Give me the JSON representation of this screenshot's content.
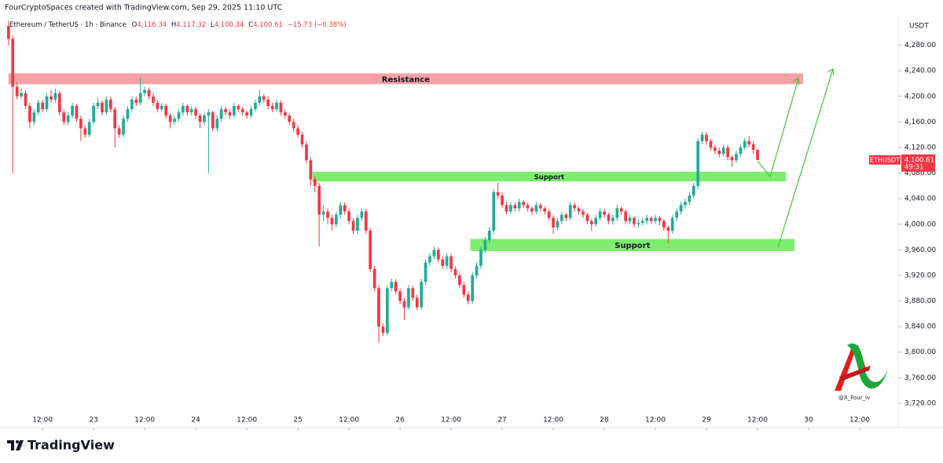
{
  "header": {
    "attribution": "FourCryptoSpaces created with TradingView.com, Sep 29, 2025 11:10 UTC",
    "watermark": "@X_Four_iv",
    "brand": "TradingView"
  },
  "chart_data": {
    "type": "candlestick",
    "currency": "USDT",
    "legend": {
      "symbol": "Ethereum / TetherUS · 1h · Binance",
      "open_label": "O",
      "open": "4,116.34",
      "high_label": "H",
      "high": "4,117.32",
      "low_label": "L",
      "low": "4,100.34",
      "close_label": "C",
      "close": "4,100.61",
      "change": "−15.73 (−0.38%)"
    },
    "colors": {
      "up": "#22ab94",
      "down": "#f23645"
    },
    "xlim": [
      -2,
      208.5
    ],
    "xticks": [
      {
        "value": 8,
        "label": "12:00"
      },
      {
        "value": 20,
        "label": "23"
      },
      {
        "value": 32,
        "label": "12:00"
      },
      {
        "value": 44,
        "label": "24"
      },
      {
        "value": 56,
        "label": "12:00"
      },
      {
        "value": 68,
        "label": "25"
      },
      {
        "value": 80,
        "label": "12:00"
      },
      {
        "value": 92,
        "label": "26"
      },
      {
        "value": 104,
        "label": "12:00"
      },
      {
        "value": 116,
        "label": "27"
      },
      {
        "value": 128,
        "label": "12:00"
      },
      {
        "value": 140,
        "label": "28"
      },
      {
        "value": 152,
        "label": "12:00"
      },
      {
        "value": 164,
        "label": "29"
      },
      {
        "value": 176,
        "label": "12:00"
      },
      {
        "value": 188,
        "label": "30"
      },
      {
        "value": 200,
        "label": "12:00"
      }
    ],
    "ylim": [
      3688,
      4320
    ],
    "yticks": [
      {
        "value": 3720,
        "label": "3,720.00"
      },
      {
        "value": 3760,
        "label": "3,760.00"
      },
      {
        "value": 3800,
        "label": "3,800.00"
      },
      {
        "value": 3840,
        "label": "3,840.00"
      },
      {
        "value": 3880,
        "label": "3,880.00"
      },
      {
        "value": 3920,
        "label": "3,920.00"
      },
      {
        "value": 3960,
        "label": "3,960.00"
      },
      {
        "value": 4000,
        "label": "4,000.00"
      },
      {
        "value": 4040,
        "label": "4,040.00"
      },
      {
        "value": 4080,
        "label": "4,080.00"
      },
      {
        "value": 4120,
        "label": "4,120.00"
      },
      {
        "value": 4160,
        "label": "4,160.00"
      },
      {
        "value": 4200,
        "label": "4,200.00"
      },
      {
        "value": 4240,
        "label": "4,240.00"
      },
      {
        "value": 4280,
        "label": "4,280.00"
      }
    ],
    "zones": [
      {
        "label": "Resistance",
        "range": [
          4219,
          4236
        ],
        "x": [
          0,
          186.7
        ],
        "color": "#f7a1a6"
      },
      {
        "label": "Support",
        "range": [
          4067,
          4082
        ],
        "x": [
          71.4,
          182.7
        ],
        "color": "#7ded6f"
      },
      {
        "label": "Support",
        "range": [
          3958,
          3977
        ],
        "x": [
          108.5,
          184.7
        ],
        "color": "#7ded6f"
      }
    ],
    "last_price": {
      "symbol": "ETHUSDT",
      "value": 4100.61,
      "label": "4,100.61",
      "countdown": "49:31",
      "color": "#f23645"
    },
    "ohlc": [
      [
        4310,
        4318,
        4280,
        4290
      ],
      [
        4290,
        4295,
        4080,
        4215
      ],
      [
        4215,
        4222,
        4195,
        4200
      ],
      [
        4200,
        4212,
        4196,
        4205
      ],
      [
        4205,
        4210,
        4180,
        4185
      ],
      [
        4185,
        4190,
        4150,
        4160
      ],
      [
        4160,
        4180,
        4155,
        4175
      ],
      [
        4175,
        4195,
        4170,
        4190
      ],
      [
        4190,
        4194,
        4175,
        4180
      ],
      [
        4180,
        4205,
        4176,
        4200
      ],
      [
        4200,
        4210,
        4190,
        4195
      ],
      [
        4195,
        4212,
        4190,
        4205
      ],
      [
        4205,
        4208,
        4170,
        4175
      ],
      [
        4175,
        4180,
        4155,
        4160
      ],
      [
        4160,
        4175,
        4155,
        4170
      ],
      [
        4170,
        4190,
        4166,
        4185
      ],
      [
        4185,
        4188,
        4160,
        4165
      ],
      [
        4165,
        4170,
        4130,
        4150
      ],
      [
        4150,
        4155,
        4135,
        4140
      ],
      [
        4140,
        4165,
        4136,
        4160
      ],
      [
        4160,
        4190,
        4156,
        4185
      ],
      [
        4185,
        4198,
        4180,
        4190
      ],
      [
        4190,
        4194,
        4170,
        4175
      ],
      [
        4175,
        4200,
        4172,
        4195
      ],
      [
        4195,
        4200,
        4175,
        4180
      ],
      [
        4180,
        4184,
        4120,
        4150
      ],
      [
        4150,
        4155,
        4135,
        4140
      ],
      [
        4140,
        4170,
        4136,
        4165
      ],
      [
        4165,
        4185,
        4160,
        4180
      ],
      [
        4180,
        4200,
        4176,
        4195
      ],
      [
        4195,
        4200,
        4185,
        4190
      ],
      [
        4190,
        4230,
        4186,
        4205
      ],
      [
        4205,
        4215,
        4200,
        4210
      ],
      [
        4210,
        4214,
        4195,
        4200
      ],
      [
        4200,
        4205,
        4185,
        4190
      ],
      [
        4190,
        4194,
        4175,
        4180
      ],
      [
        4180,
        4190,
        4176,
        4185
      ],
      [
        4185,
        4188,
        4165,
        4170
      ],
      [
        4170,
        4174,
        4150,
        4160
      ],
      [
        4160,
        4170,
        4155,
        4165
      ],
      [
        4165,
        4180,
        4160,
        4175
      ],
      [
        4175,
        4190,
        4170,
        4185
      ],
      [
        4185,
        4188,
        4170,
        4175
      ],
      [
        4175,
        4185,
        4170,
        4180
      ],
      [
        4180,
        4184,
        4165,
        4170
      ],
      [
        4170,
        4174,
        4150,
        4160
      ],
      [
        4160,
        4175,
        4155,
        4170
      ],
      [
        4170,
        4180,
        4080,
        4175
      ],
      [
        4175,
        4178,
        4145,
        4150
      ],
      [
        4150,
        4170,
        4145,
        4165
      ],
      [
        4165,
        4185,
        4160,
        4180
      ],
      [
        4180,
        4184,
        4170,
        4175
      ],
      [
        4175,
        4180,
        4165,
        4170
      ],
      [
        4170,
        4190,
        4166,
        4185
      ],
      [
        4185,
        4188,
        4175,
        4180
      ],
      [
        4180,
        4184,
        4170,
        4175
      ],
      [
        4175,
        4178,
        4165,
        4170
      ],
      [
        4170,
        4185,
        4166,
        4180
      ],
      [
        4180,
        4195,
        4176,
        4190
      ],
      [
        4190,
        4210,
        4186,
        4200
      ],
      [
        4200,
        4204,
        4190,
        4195
      ],
      [
        4195,
        4200,
        4180,
        4185
      ],
      [
        4185,
        4190,
        4175,
        4180
      ],
      [
        4180,
        4195,
        4176,
        4190
      ],
      [
        4190,
        4194,
        4170,
        4175
      ],
      [
        4175,
        4180,
        4165,
        4170
      ],
      [
        4170,
        4174,
        4155,
        4160
      ],
      [
        4160,
        4165,
        4145,
        4150
      ],
      [
        4150,
        4155,
        4135,
        4140
      ],
      [
        4140,
        4145,
        4120,
        4125
      ],
      [
        4125,
        4130,
        4095,
        4100
      ],
      [
        4100,
        4105,
        4060,
        4070
      ],
      [
        4070,
        4075,
        4050,
        4060
      ],
      [
        4060,
        4065,
        3965,
        4015
      ],
      [
        4015,
        4030,
        4005,
        4020
      ],
      [
        4020,
        4025,
        4000,
        4010
      ],
      [
        4010,
        4015,
        3990,
        4000
      ],
      [
        4000,
        4020,
        3995,
        4015
      ],
      [
        4015,
        4035,
        4010,
        4030
      ],
      [
        4030,
        4034,
        4015,
        4020
      ],
      [
        4020,
        4025,
        4000,
        4005
      ],
      [
        4005,
        4010,
        3985,
        3990
      ],
      [
        3990,
        4015,
        3985,
        4010
      ],
      [
        4010,
        4025,
        4005,
        4020
      ],
      [
        4020,
        4024,
        3985,
        3990
      ],
      [
        3990,
        3995,
        3925,
        3930
      ],
      [
        3930,
        3935,
        3895,
        3900
      ],
      [
        3900,
        3905,
        3815,
        3840
      ],
      [
        3840,
        3845,
        3825,
        3830
      ],
      [
        3830,
        3905,
        3826,
        3900
      ],
      [
        3900,
        3915,
        3895,
        3910
      ],
      [
        3910,
        3914,
        3890,
        3895
      ],
      [
        3895,
        3900,
        3875,
        3880
      ],
      [
        3880,
        3885,
        3850,
        3870
      ],
      [
        3870,
        3905,
        3866,
        3900
      ],
      [
        3900,
        3904,
        3880,
        3885
      ],
      [
        3885,
        3890,
        3865,
        3870
      ],
      [
        3870,
        3915,
        3866,
        3910
      ],
      [
        3910,
        3945,
        3905,
        3940
      ],
      [
        3940,
        3955,
        3935,
        3950
      ],
      [
        3950,
        3965,
        3945,
        3960
      ],
      [
        3960,
        3964,
        3940,
        3945
      ],
      [
        3945,
        3950,
        3930,
        3935
      ],
      [
        3935,
        3955,
        3930,
        3950
      ],
      [
        3950,
        3954,
        3925,
        3930
      ],
      [
        3930,
        3934,
        3915,
        3920
      ],
      [
        3920,
        3924,
        3900,
        3905
      ],
      [
        3905,
        3910,
        3885,
        3890
      ],
      [
        3890,
        3895,
        3875,
        3880
      ],
      [
        3880,
        3925,
        3876,
        3920
      ],
      [
        3920,
        3940,
        3915,
        3935
      ],
      [
        3935,
        3965,
        3930,
        3960
      ],
      [
        3960,
        3980,
        3955,
        3975
      ],
      [
        3975,
        3995,
        3970,
        3990
      ],
      [
        3990,
        4055,
        3985,
        4050
      ],
      [
        4050,
        4065,
        4040,
        4045
      ],
      [
        4045,
        4050,
        4025,
        4030
      ],
      [
        4030,
        4035,
        4015,
        4020
      ],
      [
        4020,
        4035,
        4016,
        4030
      ],
      [
        4030,
        4034,
        4020,
        4025
      ],
      [
        4025,
        4040,
        4020,
        4035
      ],
      [
        4035,
        4038,
        4025,
        4030
      ],
      [
        4030,
        4034,
        4020,
        4025
      ],
      [
        4025,
        4028,
        4015,
        4020
      ],
      [
        4020,
        4035,
        4016,
        4030
      ],
      [
        4030,
        4033,
        4020,
        4025
      ],
      [
        4025,
        4028,
        4015,
        4020
      ],
      [
        4020,
        4024,
        4005,
        4010
      ],
      [
        4010,
        4014,
        3985,
        3995
      ],
      [
        3995,
        4010,
        3990,
        4005
      ],
      [
        4005,
        4020,
        4000,
        4015
      ],
      [
        4015,
        4018,
        4005,
        4010
      ],
      [
        4010,
        4035,
        4006,
        4030
      ],
      [
        4030,
        4034,
        4020,
        4025
      ],
      [
        4025,
        4028,
        4015,
        4020
      ],
      [
        4020,
        4024,
        4010,
        4015
      ],
      [
        4015,
        4018,
        4000,
        4005
      ],
      [
        4005,
        4008,
        3990,
        4000
      ],
      [
        4000,
        4015,
        3996,
        4010
      ],
      [
        4010,
        4025,
        4006,
        4020
      ],
      [
        4020,
        4024,
        4010,
        4015
      ],
      [
        4015,
        4018,
        4000,
        4005
      ],
      [
        4005,
        4015,
        4000,
        4010
      ],
      [
        4010,
        4030,
        4006,
        4025
      ],
      [
        4025,
        4028,
        4015,
        4020
      ],
      [
        4020,
        4023,
        4000,
        4005
      ],
      [
        4005,
        4015,
        4000,
        4010
      ],
      [
        4010,
        4013,
        3995,
        4000
      ],
      [
        4000,
        4008,
        3995,
        4002
      ],
      [
        4002,
        4010,
        3998,
        4005
      ],
      [
        4005,
        4015,
        4000,
        4010
      ],
      [
        4010,
        4013,
        4000,
        4005
      ],
      [
        4005,
        4015,
        4000,
        4010
      ],
      [
        4010,
        4013,
        3998,
        4005
      ],
      [
        4005,
        4008,
        3990,
        3995
      ],
      [
        3995,
        3998,
        3970,
        3990
      ],
      [
        3990,
        4015,
        3985,
        4010
      ],
      [
        4010,
        4025,
        4005,
        4020
      ],
      [
        4020,
        4035,
        4015,
        4030
      ],
      [
        4030,
        4040,
        4025,
        4035
      ],
      [
        4035,
        4050,
        4030,
        4045
      ],
      [
        4045,
        4065,
        4040,
        4060
      ],
      [
        4060,
        4135,
        4055,
        4130
      ],
      [
        4130,
        4145,
        4125,
        4140
      ],
      [
        4140,
        4144,
        4125,
        4130
      ],
      [
        4130,
        4134,
        4115,
        4120
      ],
      [
        4120,
        4124,
        4110,
        4115
      ],
      [
        4115,
        4120,
        4105,
        4110
      ],
      [
        4110,
        4125,
        4106,
        4120
      ],
      [
        4120,
        4124,
        4100,
        4105
      ],
      [
        4105,
        4108,
        4090,
        4100
      ],
      [
        4100,
        4115,
        4096,
        4110
      ],
      [
        4110,
        4125,
        4106,
        4120
      ],
      [
        4120,
        4135,
        4116,
        4130
      ],
      [
        4130,
        4138,
        4120,
        4125
      ],
      [
        4125,
        4130,
        4110,
        4116.34
      ],
      [
        4116.34,
        4117.32,
        4100.34,
        4100.61
      ]
    ]
  }
}
